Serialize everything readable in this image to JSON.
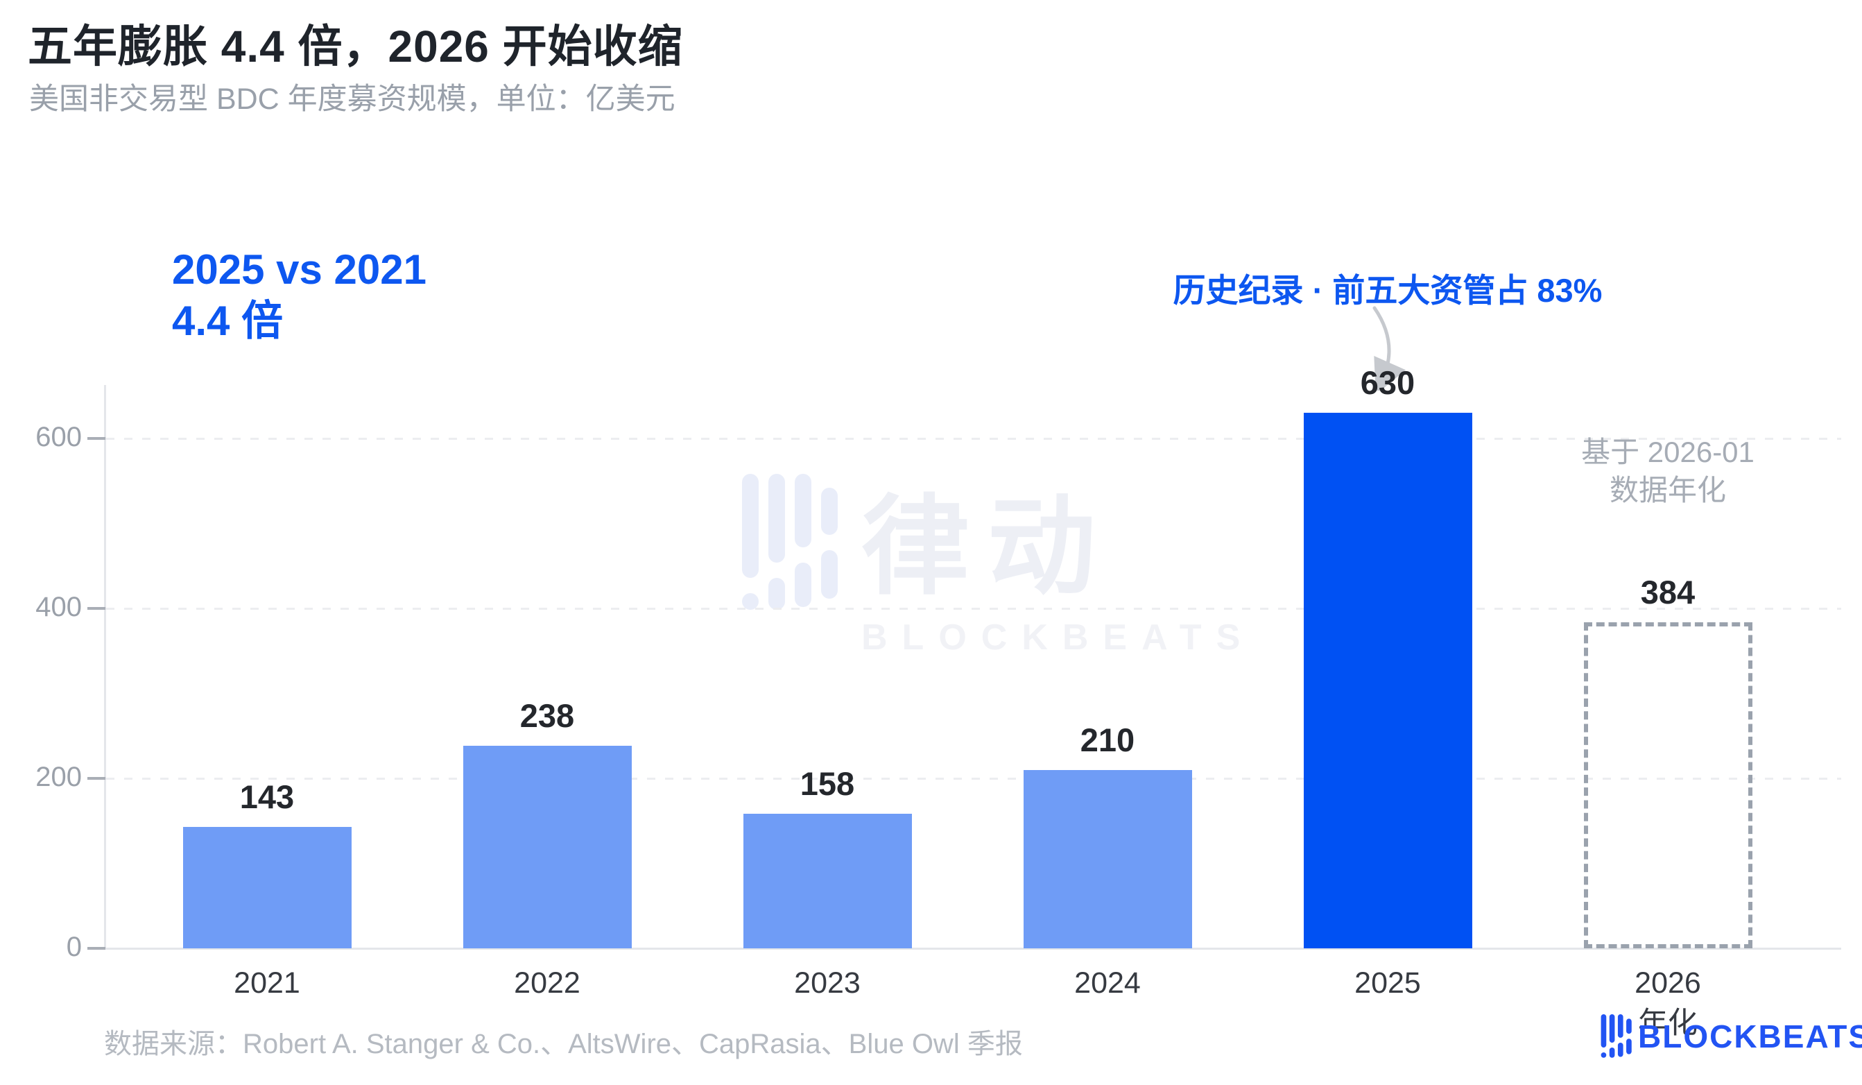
{
  "header": {
    "title": "五年膨胀 4.4 倍，2026 开始收缩",
    "subtitle": "美国非交易型 BDC 年度募资规模，单位：亿美元"
  },
  "annotations": {
    "growth_line1": "2025 vs 2021",
    "growth_line2": "4.4 倍",
    "record": "历史纪录 · 前五大资管占 83%",
    "note_line1": "基于 2026-01",
    "note_line2": "数据年化"
  },
  "chart_data": {
    "type": "bar",
    "title": "五年膨胀 4.4 倍，2026 开始收缩",
    "subtitle": "美国非交易型 BDC 年度募资规模",
    "unit": "亿美元",
    "categories": [
      "2021",
      "2022",
      "2023",
      "2024",
      "2025",
      "2026"
    ],
    "category_sublabels": [
      "",
      "",
      "",
      "",
      "",
      "年化"
    ],
    "values": [
      143,
      238,
      158,
      210,
      630,
      384
    ],
    "bar_styles": [
      "solid-light",
      "solid-light",
      "solid-light",
      "solid-light",
      "solid-highlight",
      "dashed-outline"
    ],
    "yticks": [
      0,
      200,
      400,
      600
    ],
    "ylim": [
      0,
      660
    ],
    "grid": "horizontal-dashed",
    "legend": "none",
    "colors": {
      "bar_light": "#6f9cf6",
      "bar_highlight": "#0051f3",
      "bar_dashed_border": "#9aa2ad",
      "accent_blue": "#0d57f0",
      "value_label": "#24272c",
      "axis_label": "#9aa0a9"
    }
  },
  "watermark": {
    "cn": "律动",
    "en": "BLOCKBEATS"
  },
  "footer": {
    "source": "数据来源：Robert A. Stanger & Co.、AltsWire、CapRasia、Blue Owl 季报",
    "brand": "BLOCKBEATS"
  }
}
